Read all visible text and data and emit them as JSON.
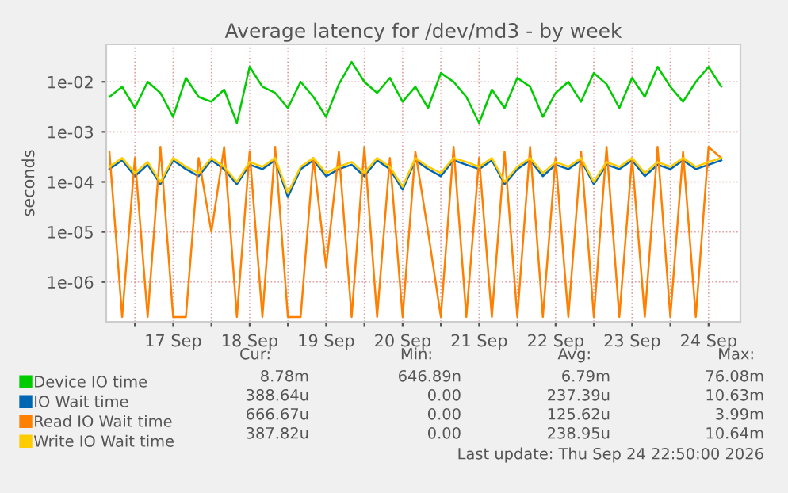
{
  "chart_data": {
    "type": "line",
    "title": "Average latency for /dev/md3 - by week",
    "ylabel": "seconds",
    "log": "y",
    "grid": true,
    "legend": "bottom",
    "line_style": "solid",
    "marker": "none",
    "x": [
      "2026-09-16T16:00",
      "2026-09-16T20:00",
      "2026-09-17T00:00",
      "2026-09-17T04:00",
      "2026-09-17T08:00",
      "2026-09-17T12:00",
      "2026-09-17T16:00",
      "2026-09-17T20:00",
      "2026-09-18T00:00",
      "2026-09-18T04:00",
      "2026-09-18T08:00",
      "2026-09-18T12:00",
      "2026-09-18T16:00",
      "2026-09-18T20:00",
      "2026-09-19T00:00",
      "2026-09-19T04:00",
      "2026-09-19T08:00",
      "2026-09-19T12:00",
      "2026-09-19T16:00",
      "2026-09-19T20:00",
      "2026-09-20T00:00",
      "2026-09-20T04:00",
      "2026-09-20T08:00",
      "2026-09-20T12:00",
      "2026-09-20T16:00",
      "2026-09-20T20:00",
      "2026-09-21T00:00",
      "2026-09-21T04:00",
      "2026-09-21T08:00",
      "2026-09-21T12:00",
      "2026-09-21T16:00",
      "2026-09-21T20:00",
      "2026-09-22T00:00",
      "2026-09-22T04:00",
      "2026-09-22T08:00",
      "2026-09-22T12:00",
      "2026-09-22T16:00",
      "2026-09-22T20:00",
      "2026-09-23T00:00",
      "2026-09-23T04:00",
      "2026-09-23T08:00",
      "2026-09-23T12:00",
      "2026-09-23T16:00",
      "2026-09-23T20:00",
      "2026-09-24T00:00",
      "2026-09-24T04:00",
      "2026-09-24T08:00",
      "2026-09-24T12:00",
      "2026-09-24T16:00"
    ],
    "series": [
      {
        "name": "Device IO time",
        "color": "#00cc00",
        "values": [
          0.005,
          0.008,
          0.003,
          0.01,
          0.006,
          0.002,
          0.012,
          0.005,
          0.004,
          0.007,
          0.0015,
          0.02,
          0.008,
          0.006,
          0.003,
          0.01,
          0.005,
          0.002,
          0.009,
          0.025,
          0.01,
          0.006,
          0.012,
          0.004,
          0.008,
          0.003,
          0.015,
          0.01,
          0.005,
          0.0015,
          0.007,
          0.003,
          0.012,
          0.008,
          0.002,
          0.006,
          0.01,
          0.004,
          0.015,
          0.009,
          0.003,
          0.012,
          0.005,
          0.02,
          0.008,
          0.004,
          0.01,
          0.02,
          0.008
        ]
      },
      {
        "name": "IO Wait time",
        "color": "#0066b3",
        "values": [
          0.00018,
          0.00027,
          0.00013,
          0.00022,
          9e-05,
          0.00027,
          0.00018,
          0.00013,
          0.00027,
          0.00018,
          9e-05,
          0.00022,
          0.00018,
          0.00027,
          5e-05,
          0.00018,
          0.00027,
          0.00013,
          0.00018,
          0.00022,
          0.00013,
          0.00027,
          0.00018,
          7e-05,
          0.00027,
          0.00018,
          0.00013,
          0.00027,
          0.00022,
          0.00018,
          0.00027,
          9e-05,
          0.00018,
          0.00027,
          0.00013,
          0.00022,
          0.00018,
          0.00027,
          9e-05,
          0.00022,
          0.00018,
          0.00027,
          0.00013,
          0.00022,
          0.00018,
          0.00027,
          0.00018,
          0.00022,
          0.00027
        ]
      },
      {
        "name": "Read IO Wait time",
        "color": "#ff8000",
        "values": [
          0.0004,
          2e-07,
          0.0003,
          2e-07,
          0.0005,
          2e-07,
          2e-07,
          0.0003,
          1e-05,
          0.0005,
          2e-07,
          0.0004,
          2e-07,
          0.0005,
          2e-07,
          2e-07,
          0.0003,
          2e-06,
          0.0004,
          2e-07,
          0.0005,
          2e-07,
          0.0003,
          2e-07,
          0.0004,
          1e-05,
          2e-07,
          0.0005,
          2e-07,
          0.0003,
          2e-07,
          0.0004,
          2e-07,
          0.0005,
          2e-07,
          0.0003,
          2e-07,
          0.0004,
          2e-07,
          0.0005,
          2e-07,
          0.0003,
          2e-07,
          0.0005,
          2e-07,
          0.0004,
          2e-07,
          0.0005,
          0.0003
        ]
      },
      {
        "name": "Write IO Wait time",
        "color": "#ffcc00",
        "values": [
          0.0002,
          0.0003,
          0.00015,
          0.00025,
          0.0001,
          0.0003,
          0.0002,
          0.00015,
          0.0003,
          0.0002,
          0.0001,
          0.00025,
          0.0002,
          0.0003,
          6e-05,
          0.0002,
          0.0003,
          0.00015,
          0.0002,
          0.00025,
          0.00015,
          0.0003,
          0.0002,
          8e-05,
          0.0003,
          0.0002,
          0.00015,
          0.0003,
          0.00025,
          0.0002,
          0.0003,
          0.0001,
          0.0002,
          0.0003,
          0.00015,
          0.00025,
          0.0002,
          0.0003,
          0.0001,
          0.00025,
          0.0002,
          0.0003,
          0.00015,
          0.00025,
          0.0002,
          0.0003,
          0.0002,
          0.00025,
          0.0003
        ]
      }
    ],
    "xlim": [
      "2026-09-16T15:00",
      "2026-09-24T22:00"
    ],
    "xticks": [
      {
        "value": "2026-09-17T00:00",
        "label": null
      },
      {
        "value": "2026-09-17T12:00",
        "label": "17 Sep"
      },
      {
        "value": "2026-09-18T00:00",
        "label": null
      },
      {
        "value": "2026-09-18T12:00",
        "label": "18 Sep"
      },
      {
        "value": "2026-09-19T00:00",
        "label": null
      },
      {
        "value": "2026-09-19T12:00",
        "label": "19 Sep"
      },
      {
        "value": "2026-09-20T00:00",
        "label": null
      },
      {
        "value": "2026-09-20T12:00",
        "label": "20 Sep"
      },
      {
        "value": "2026-09-21T00:00",
        "label": null
      },
      {
        "value": "2026-09-21T12:00",
        "label": "21 Sep"
      },
      {
        "value": "2026-09-22T00:00",
        "label": null
      },
      {
        "value": "2026-09-22T12:00",
        "label": "22 Sep"
      },
      {
        "value": "2026-09-23T00:00",
        "label": null
      },
      {
        "value": "2026-09-23T12:00",
        "label": "23 Sep"
      },
      {
        "value": "2026-09-24T00:00",
        "label": null
      },
      {
        "value": "2026-09-24T12:00",
        "label": "24 Sep"
      }
    ],
    "ylim": [
      1.6e-07,
      0.056
    ],
    "yticks": [
      {
        "value": 1e-06,
        "label": "1e-06"
      },
      {
        "value": 1e-05,
        "label": "1e-05"
      },
      {
        "value": 0.0001,
        "label": "1e-04"
      },
      {
        "value": 0.001,
        "label": "1e-03"
      },
      {
        "value": 0.01,
        "label": "1e-02"
      }
    ],
    "annotations": [
      "Cur:",
      "Min:",
      "Avg:",
      "Max:",
      "8.78m",
      "646.89n",
      "6.79m",
      "76.08m",
      "388.64u",
      "0.00",
      "237.39u",
      "10.63m",
      "666.67u",
      "0.00",
      "125.62u",
      "3.99m",
      "387.82u",
      "0.00",
      "238.95u",
      "10.64m",
      "Last update: Thu Sep 24 22:50:00 2026"
    ]
  }
}
